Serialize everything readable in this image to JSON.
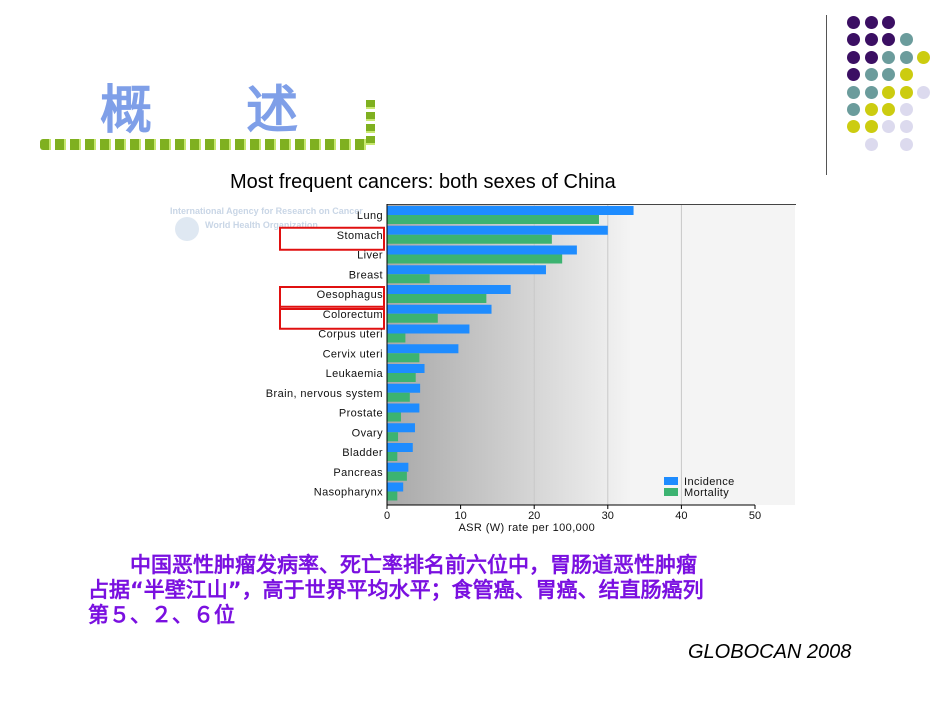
{
  "slide": {
    "heading": "概 述",
    "body_lines": [
      "　　中国恶性肿瘤发病率、死亡率排名前六位中，胃肠道恶性肿瘤",
      "占据“半壁江山”，高于世界平均水平；食管癌、胃癌、结直肠癌列",
      "第５、２、６位"
    ],
    "source": "GLOBOCAN 2008",
    "text_color": "#7a10e0",
    "heading_color": "#7f9fe8",
    "dot_colors": {
      "P": "#3b0f63",
      "T": "#6b9c9c",
      "Y": "#cccc10",
      "L": "#dcdaee"
    },
    "dot_pattern": [
      "PPP..",
      "PPPT.",
      "PPTTY",
      "PTTY.",
      "TTYYL",
      "TYYL.",
      "YYLL.",
      ".L.L."
    ]
  },
  "chart_data": {
    "type": "bar",
    "orientation": "horizontal",
    "title": "Most frequent cancers: both sexes of China",
    "xlabel": "ASR (W) rate per 100,000",
    "ylabel": "",
    "xlim": [
      0,
      50
    ],
    "xticks": [
      "0",
      "10",
      "20",
      "30",
      "40",
      "50"
    ],
    "grid": "vertical",
    "legend_placement": "bottom-right",
    "watermark": [
      "International Agency for Research on Cancer",
      "World Health Organization"
    ],
    "categories": [
      "Lung",
      "Stomach",
      "Liver",
      "Breast",
      "Oesophagus",
      "Colorectum",
      "Corpus uteri",
      "Cervix uteri",
      "Leukaemia",
      "Brain, nervous system",
      "Prostate",
      "Ovary",
      "Bladder",
      "Pancreas",
      "Nasopharynx"
    ],
    "highlighted": [
      "Stomach",
      "Oesophagus",
      "Colorectum"
    ],
    "highlight_color": "#e01010",
    "series": [
      {
        "name": "Incidence",
        "color": "#1e8cff",
        "values": [
          33.5,
          30.0,
          25.8,
          21.6,
          16.8,
          14.2,
          11.2,
          9.7,
          5.1,
          4.5,
          4.4,
          3.8,
          3.5,
          2.9,
          2.2
        ]
      },
      {
        "name": "Mortality",
        "color": "#3cb371",
        "values": [
          28.8,
          22.4,
          23.8,
          5.8,
          13.5,
          6.9,
          2.5,
          4.4,
          3.9,
          3.1,
          1.9,
          1.5,
          1.4,
          2.7,
          1.4
        ]
      }
    ]
  }
}
